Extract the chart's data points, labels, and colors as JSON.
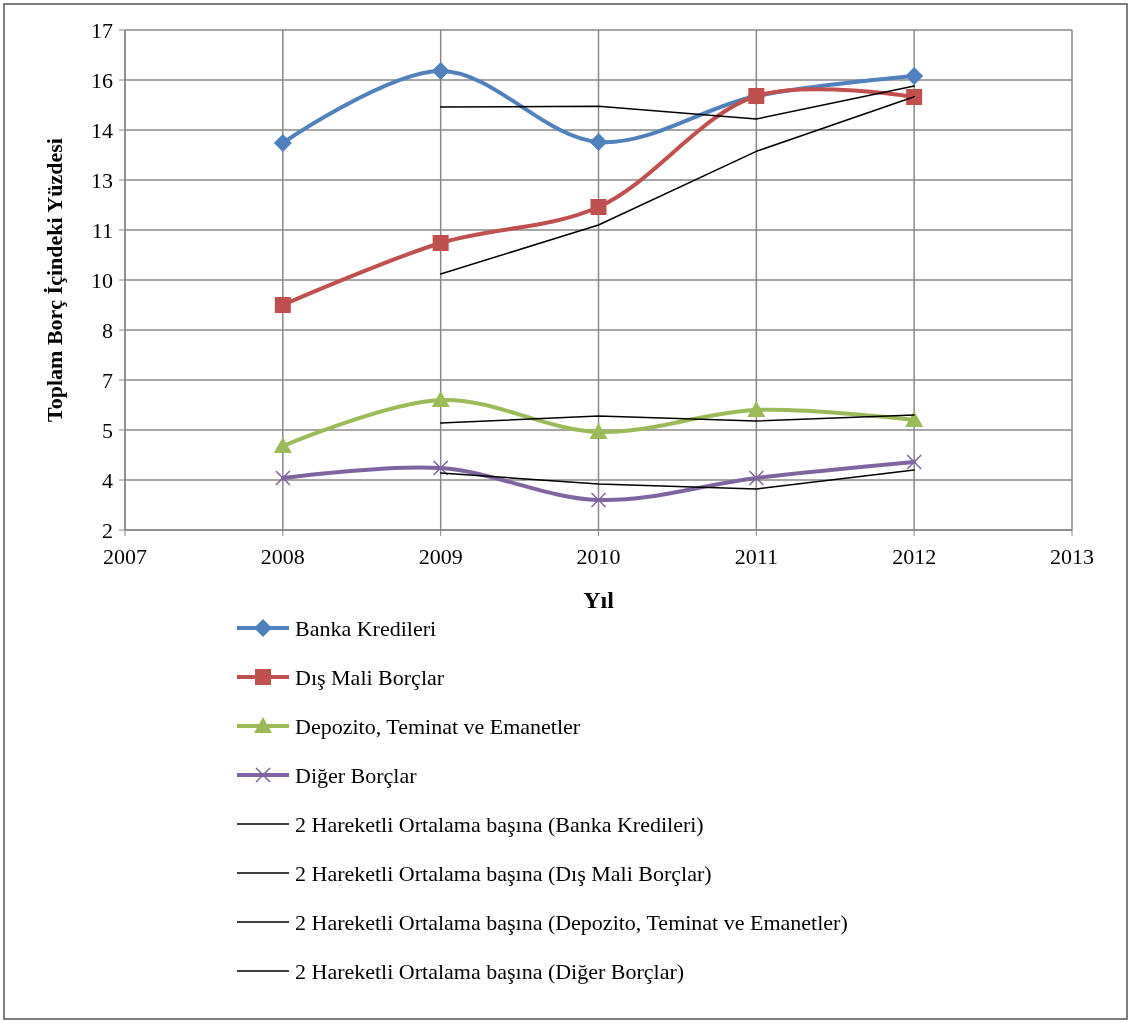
{
  "chart_data": {
    "type": "line",
    "xlabel": "Yıl",
    "ylabel": "Toplam Borç İçindeki Yüzdesi",
    "xlim": [
      2007,
      2013
    ],
    "xticks": [
      2007,
      2008,
      2009,
      2010,
      2011,
      2012,
      2013
    ],
    "ylim": [
      2,
      17
    ],
    "yticks": [
      2,
      {
        "value": 3.5,
        "label": "4"
      },
      5,
      {
        "value": 6.5,
        "label": "7"
      },
      8,
      {
        "value": 9.5,
        "label": "10"
      },
      11,
      {
        "value": 12.5,
        "label": "13"
      },
      14,
      {
        "value": 15.5,
        "label": "16"
      },
      17
    ],
    "grid": true,
    "legend": "bottom",
    "series": [
      {
        "name": "Banka Kredileri",
        "color": "#4f81bd",
        "marker": "diamond",
        "x": [
          2008,
          2009,
          2010,
          2011,
          2012
        ],
        "values": [
          13.61,
          15.77,
          13.64,
          15.02,
          15.62
        ]
      },
      {
        "name": "Dış Mali Borçlar",
        "color": "#c0504d",
        "marker": "square",
        "x": [
          2008,
          2009,
          2010,
          2011,
          2012
        ],
        "values": [
          8.75,
          10.61,
          11.69,
          15.02,
          14.99
        ]
      },
      {
        "name": "Depozito, Teminat ve Emanetler",
        "color": "#9bbb59",
        "marker": "triangle",
        "x": [
          2008,
          2009,
          2010,
          2011,
          2012
        ],
        "values": [
          4.52,
          5.9,
          4.94,
          5.6,
          5.3
        ]
      },
      {
        "name": "Diğer Borçlar",
        "color": "#8064a2",
        "marker": "cross",
        "x": [
          2008,
          2009,
          2010,
          2011,
          2012
        ],
        "values": [
          3.56,
          3.86,
          2.9,
          3.56,
          4.04
        ]
      },
      {
        "name": "2 Hareketli Ortalama başına (Banka Kredileri)",
        "color": "#000000",
        "marker": "none",
        "x": [
          2009,
          2010,
          2011,
          2012
        ],
        "values": [
          14.69,
          14.71,
          14.33,
          15.32
        ]
      },
      {
        "name": "2 Hareketli Ortalama başına (Dış Mali Borçlar)",
        "color": "#000000",
        "marker": "none",
        "x": [
          2009,
          2010,
          2011,
          2012
        ],
        "values": [
          9.68,
          11.15,
          13.36,
          15.0
        ]
      },
      {
        "name": "2 Hareketli Ortalama başına (Depozito, Teminat ve Emanetler)",
        "color": "#000000",
        "marker": "none",
        "x": [
          2009,
          2010,
          2011,
          2012
        ],
        "values": [
          5.21,
          5.42,
          5.27,
          5.45
        ]
      },
      {
        "name": "2 Hareketli Ortalama başına (Diğer Borçlar)",
        "color": "#000000",
        "marker": "none",
        "x": [
          2009,
          2010,
          2011,
          2012
        ],
        "values": [
          3.71,
          3.38,
          3.23,
          3.8
        ]
      }
    ]
  }
}
